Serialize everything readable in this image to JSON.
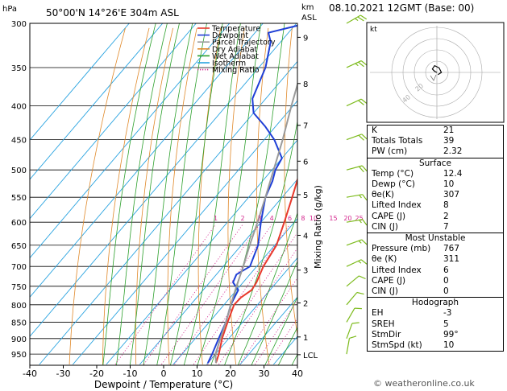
{
  "header": {
    "hpa_label": "hPa",
    "location": "50°00'N 14°26'E 304m ASL",
    "km_label": "km",
    "asl_label": "ASL",
    "date": "08.10.2021 12GMT (Base: 00)"
  },
  "chart_data": {
    "type": "skew-t",
    "xlabel": "Dewpoint / Temperature (°C)",
    "ylabel_left": "hPa",
    "ylabel_right": "Mixing Ratio (g/kg)",
    "xlim": [
      -40,
      40
    ],
    "ylim_hpa": [
      1000,
      300
    ],
    "x_ticks": [
      -40,
      -30,
      -20,
      -10,
      0,
      10,
      20,
      30,
      40
    ],
    "pressure_ticks": [
      300,
      350,
      400,
      450,
      500,
      550,
      600,
      650,
      700,
      750,
      800,
      850,
      900,
      950
    ],
    "km_ticks": [
      {
        "label": "9",
        "p": 315
      },
      {
        "label": "8",
        "p": 370
      },
      {
        "label": "7",
        "p": 428
      },
      {
        "label": "6",
        "p": 485
      },
      {
        "label": "5",
        "p": 545
      },
      {
        "label": "4",
        "p": 628
      },
      {
        "label": "3",
        "p": 709
      },
      {
        "label": "2",
        "p": 795
      },
      {
        "label": "1",
        "p": 895
      },
      {
        "label": "LCL",
        "p": 952
      }
    ],
    "mixing_ratio_labels": [
      "1",
      "2",
      "3",
      "4",
      "6",
      "8",
      "10",
      "15",
      "20",
      "25"
    ],
    "legend": {
      "placement": "top",
      "entries": [
        {
          "name": "Temperature",
          "color": "#e8392c",
          "style": "solid"
        },
        {
          "name": "Dewpoint",
          "color": "#1f3fd6",
          "style": "solid"
        },
        {
          "name": "Parcel Trajectory",
          "color": "#9a9a9a",
          "style": "solid"
        },
        {
          "name": "Dry Adiabat",
          "color": "#e0892a",
          "style": "solid"
        },
        {
          "name": "Wet Adiabat",
          "color": "#2ca02c",
          "style": "solid"
        },
        {
          "name": "Isotherm",
          "color": "#29a3e0",
          "style": "solid"
        },
        {
          "name": "Mixing Ratio",
          "color": "#d4278e",
          "style": "dotted"
        }
      ]
    },
    "series": [
      {
        "name": "Temperature",
        "color": "#e8392c",
        "points": [
          [
            980,
            12.4
          ],
          [
            950,
            11
          ],
          [
            900,
            8
          ],
          [
            850,
            5.5
          ],
          [
            800,
            3
          ],
          [
            780,
            3.2
          ],
          [
            760,
            4.5
          ],
          [
            740,
            4
          ],
          [
            700,
            2
          ],
          [
            650,
            0.5
          ],
          [
            600,
            -3
          ],
          [
            550,
            -7
          ],
          [
            500,
            -11.5
          ],
          [
            450,
            -16.5
          ],
          [
            400,
            -22
          ],
          [
            350,
            -29
          ],
          [
            300,
            -37
          ]
        ]
      },
      {
        "name": "Dewpoint",
        "color": "#1f3fd6",
        "points": [
          [
            980,
            10
          ],
          [
            950,
            9
          ],
          [
            900,
            7
          ],
          [
            850,
            5
          ],
          [
            800,
            2
          ],
          [
            760,
            0.5
          ],
          [
            740,
            -3
          ],
          [
            720,
            -4
          ],
          [
            700,
            -2
          ],
          [
            650,
            -5
          ],
          [
            600,
            -10
          ],
          [
            550,
            -15
          ],
          [
            520,
            -17
          ],
          [
            500,
            -19
          ],
          [
            480,
            -20
          ],
          [
            450,
            -27
          ],
          [
            430,
            -33
          ],
          [
            410,
            -40
          ],
          [
            390,
            -44
          ],
          [
            350,
            -48
          ],
          [
            320,
            -53
          ],
          [
            310,
            -56
          ],
          [
            300,
            -47
          ]
        ]
      },
      {
        "name": "Parcel Trajectory",
        "color": "#9a9a9a",
        "points": [
          [
            980,
            12.4
          ],
          [
            950,
            10
          ],
          [
            900,
            7.5
          ],
          [
            850,
            5
          ],
          [
            800,
            2
          ],
          [
            750,
            -1
          ],
          [
            700,
            -4
          ],
          [
            650,
            -7.5
          ],
          [
            600,
            -11
          ],
          [
            550,
            -15
          ],
          [
            500,
            -19.5
          ],
          [
            450,
            -24.5
          ],
          [
            400,
            -30.5
          ],
          [
            350,
            -37
          ],
          [
            300,
            -45
          ]
        ]
      }
    ]
  },
  "wind_barbs": [
    {
      "p": 300,
      "dir": 240,
      "spd": 25
    },
    {
      "p": 350,
      "dir": 245,
      "spd": 25
    },
    {
      "p": 400,
      "dir": 245,
      "spd": 20
    },
    {
      "p": 450,
      "dir": 250,
      "spd": 20
    },
    {
      "p": 500,
      "dir": 255,
      "spd": 20
    },
    {
      "p": 550,
      "dir": 260,
      "spd": 15
    },
    {
      "p": 600,
      "dir": 260,
      "spd": 15
    },
    {
      "p": 650,
      "dir": 250,
      "spd": 15
    },
    {
      "p": 700,
      "dir": 245,
      "spd": 15
    },
    {
      "p": 750,
      "dir": 230,
      "spd": 10
    },
    {
      "p": 800,
      "dir": 220,
      "spd": 10
    },
    {
      "p": 850,
      "dir": 210,
      "spd": 10
    },
    {
      "p": 900,
      "dir": 200,
      "spd": 10
    },
    {
      "p": 950,
      "dir": 190,
      "spd": 10
    }
  ],
  "hodograph": {
    "title": "kt",
    "ring_labels": [
      "20",
      "40"
    ],
    "points": [
      [
        0,
        0
      ],
      [
        -2,
        -1
      ],
      [
        -4,
        -3
      ],
      [
        -2,
        -6
      ],
      [
        2,
        -4
      ],
      [
        4,
        0
      ],
      [
        1,
        2
      ]
    ]
  },
  "indices": {
    "rows": [
      {
        "label": "K",
        "value": "21"
      },
      {
        "label": "Totals Totals",
        "value": "39"
      },
      {
        "label": "PW (cm)",
        "value": "2.32"
      }
    ]
  },
  "surface": {
    "title": "Surface",
    "rows": [
      {
        "label": "Temp (°C)",
        "value": "12.4"
      },
      {
        "label": "Dewp (°C)",
        "value": "10"
      },
      {
        "label": "θe(K)",
        "value": "307"
      },
      {
        "label": "Lifted Index",
        "value": "8"
      },
      {
        "label": "CAPE (J)",
        "value": "2"
      },
      {
        "label": "CIN (J)",
        "value": "7"
      }
    ]
  },
  "most_unstable": {
    "title": "Most Unstable",
    "rows": [
      {
        "label": "Pressure (mb)",
        "value": "767"
      },
      {
        "label": "θe (K)",
        "value": "311"
      },
      {
        "label": "Lifted Index",
        "value": "6"
      },
      {
        "label": "CAPE (J)",
        "value": "0"
      },
      {
        "label": "CIN (J)",
        "value": "0"
      }
    ]
  },
  "hodograph_stats": {
    "title": "Hodograph",
    "rows": [
      {
        "label": "EH",
        "value": "-3"
      },
      {
        "label": "SREH",
        "value": "5"
      },
      {
        "label": "StmDir",
        "value": "99°"
      },
      {
        "label": "StmSpd (kt)",
        "value": "10"
      }
    ]
  },
  "credit": "© weatheronline.co.uk"
}
